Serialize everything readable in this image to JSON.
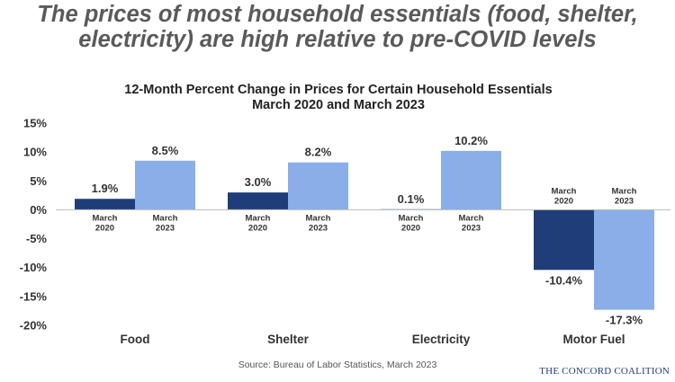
{
  "headline": {
    "line1": "The prices of most household essentials (food, shelter,",
    "line2": "electricity) are high relative to pre-COVID levels"
  },
  "footer": {
    "source": "Source: Bureau of Labor Statistics, March 2023",
    "logo": "THE CONCORD COALITION"
  },
  "colors": {
    "series_2020": "#1f3d79",
    "series_2023": "#8aaee8",
    "headline": "#5a5a5a",
    "logo": "#1f3d79"
  },
  "chart_data": {
    "type": "bar",
    "title": "12-Month Percent Change in Prices for Certain Household Essentials",
    "subtitle": "March 2020 and March 2023",
    "categories": [
      "Food",
      "Shelter",
      "Electricity",
      "Motor Fuel"
    ],
    "series": [
      {
        "name": "March 2020",
        "label_lines": [
          "March",
          "2020"
        ],
        "values": [
          1.9,
          3.0,
          0.1,
          -10.4
        ]
      },
      {
        "name": "March 2023",
        "label_lines": [
          "March",
          "2023"
        ],
        "values": [
          8.5,
          8.2,
          10.2,
          -17.3
        ]
      }
    ],
    "data_labels": [
      [
        "1.9%",
        "3.0%",
        "0.1%",
        "-10.4%"
      ],
      [
        "8.5%",
        "8.2%",
        "10.2%",
        "-17.3%"
      ]
    ],
    "y_ticks": [
      15,
      10,
      5,
      0,
      -5,
      -10,
      -15,
      -20
    ],
    "y_tick_labels": [
      "15%",
      "10%",
      "5%",
      "0%",
      "-5%",
      "-10%",
      "-15%",
      "-20%"
    ],
    "ylim": [
      -20,
      15
    ],
    "grid": false,
    "legend": "none"
  }
}
